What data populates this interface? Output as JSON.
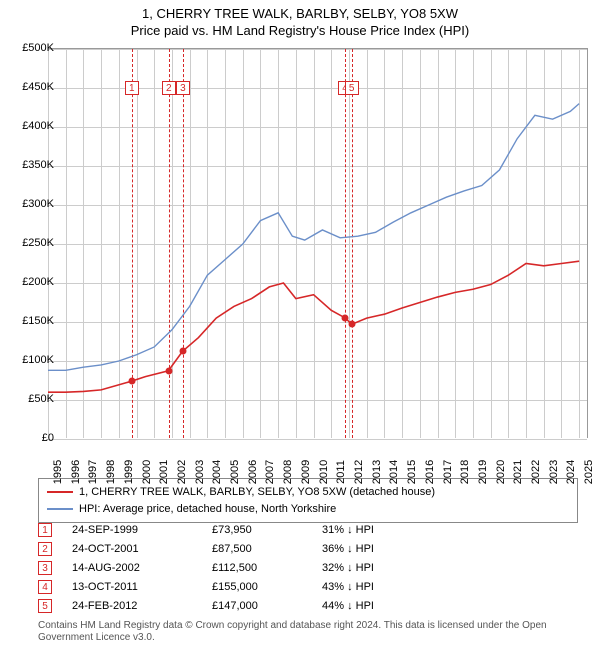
{
  "title": "1, CHERRY TREE WALK, BARLBY, SELBY, YO8 5XW",
  "subtitle": "Price paid vs. HM Land Registry's House Price Index (HPI)",
  "chart": {
    "type": "line",
    "xlim": [
      1995,
      2025.5
    ],
    "ylim": [
      0,
      500000
    ],
    "ytick_step": 50000,
    "yticks_labels": [
      "£0",
      "£50K",
      "£100K",
      "£150K",
      "£200K",
      "£250K",
      "£300K",
      "£350K",
      "£400K",
      "£450K",
      "£500K"
    ],
    "xticks": [
      1995,
      1996,
      1997,
      1998,
      1999,
      2000,
      2001,
      2002,
      2003,
      2004,
      2005,
      2006,
      2007,
      2008,
      2009,
      2010,
      2011,
      2012,
      2013,
      2014,
      2015,
      2016,
      2017,
      2018,
      2019,
      2020,
      2021,
      2022,
      2023,
      2024,
      2025
    ],
    "grid_color": "#cccccc",
    "background_color": "#ffffff",
    "series": [
      {
        "name": "property",
        "label": "1, CHERRY TREE WALK, BARLBY, SELBY, YO8 5XW (detached house)",
        "color": "#d62728",
        "line_width": 1.6,
        "points": [
          [
            1995,
            60000
          ],
          [
            1996,
            60000
          ],
          [
            1997,
            61000
          ],
          [
            1998,
            63000
          ],
          [
            1999.7,
            73950
          ],
          [
            2000.5,
            80000
          ],
          [
            2001.8,
            87500
          ],
          [
            2002.6,
            112500
          ],
          [
            2003.5,
            130000
          ],
          [
            2004.5,
            155000
          ],
          [
            2005.5,
            170000
          ],
          [
            2006.5,
            180000
          ],
          [
            2007.5,
            195000
          ],
          [
            2008.3,
            200000
          ],
          [
            2009,
            180000
          ],
          [
            2010,
            185000
          ],
          [
            2011,
            165000
          ],
          [
            2011.8,
            155000
          ],
          [
            2012.15,
            147000
          ],
          [
            2013,
            155000
          ],
          [
            2014,
            160000
          ],
          [
            2015,
            168000
          ],
          [
            2016,
            175000
          ],
          [
            2017,
            182000
          ],
          [
            2018,
            188000
          ],
          [
            2019,
            192000
          ],
          [
            2020,
            198000
          ],
          [
            2021,
            210000
          ],
          [
            2022,
            225000
          ],
          [
            2023,
            222000
          ],
          [
            2024,
            225000
          ],
          [
            2025,
            228000
          ]
        ],
        "markers": [
          [
            1999.73,
            73950
          ],
          [
            2001.82,
            87500
          ],
          [
            2002.62,
            112500
          ],
          [
            2011.78,
            155000
          ],
          [
            2012.15,
            147000
          ]
        ]
      },
      {
        "name": "hpi",
        "label": "HPI: Average price, detached house, North Yorkshire",
        "color": "#6b8fc9",
        "line_width": 1.4,
        "points": [
          [
            1995,
            88000
          ],
          [
            1996,
            88000
          ],
          [
            1997,
            92000
          ],
          [
            1998,
            95000
          ],
          [
            1999,
            100000
          ],
          [
            2000,
            108000
          ],
          [
            2001,
            118000
          ],
          [
            2002,
            140000
          ],
          [
            2003,
            170000
          ],
          [
            2004,
            210000
          ],
          [
            2005,
            230000
          ],
          [
            2006,
            250000
          ],
          [
            2007,
            280000
          ],
          [
            2008,
            290000
          ],
          [
            2008.8,
            260000
          ],
          [
            2009.5,
            255000
          ],
          [
            2010.5,
            268000
          ],
          [
            2011.5,
            258000
          ],
          [
            2012.5,
            260000
          ],
          [
            2013.5,
            265000
          ],
          [
            2014.5,
            278000
          ],
          [
            2015.5,
            290000
          ],
          [
            2016.5,
            300000
          ],
          [
            2017.5,
            310000
          ],
          [
            2018.5,
            318000
          ],
          [
            2019.5,
            325000
          ],
          [
            2020.5,
            345000
          ],
          [
            2021.5,
            385000
          ],
          [
            2022.5,
            415000
          ],
          [
            2023.5,
            410000
          ],
          [
            2024.5,
            420000
          ],
          [
            2025,
            430000
          ]
        ]
      }
    ],
    "events": [
      {
        "n": "1",
        "x": 1999.73,
        "date": "24-SEP-1999",
        "price": "£73,950",
        "diff": "31% ↓ HPI"
      },
      {
        "n": "2",
        "x": 2001.82,
        "date": "24-OCT-2001",
        "price": "£87,500",
        "diff": "36% ↓ HPI"
      },
      {
        "n": "3",
        "x": 2002.62,
        "date": "14-AUG-2002",
        "price": "£112,500",
        "diff": "32% ↓ HPI"
      },
      {
        "n": "4",
        "x": 2011.78,
        "date": "13-OCT-2011",
        "price": "£155,000",
        "diff": "43% ↓ HPI"
      },
      {
        "n": "5",
        "x": 2012.15,
        "date": "24-FEB-2012",
        "price": "£147,000",
        "diff": "44% ↓ HPI"
      }
    ],
    "event_box_color": "#d62728",
    "event_box_top_y": 450000
  },
  "legend": {
    "items": [
      {
        "color": "#d62728",
        "label": "1, CHERRY TREE WALK, BARLBY, SELBY, YO8 5XW (detached house)"
      },
      {
        "color": "#6b8fc9",
        "label": "HPI: Average price, detached house, North Yorkshire"
      }
    ]
  },
  "footer": "Contains HM Land Registry data © Crown copyright and database right 2024. This data is licensed under the Open Government Licence v3.0."
}
